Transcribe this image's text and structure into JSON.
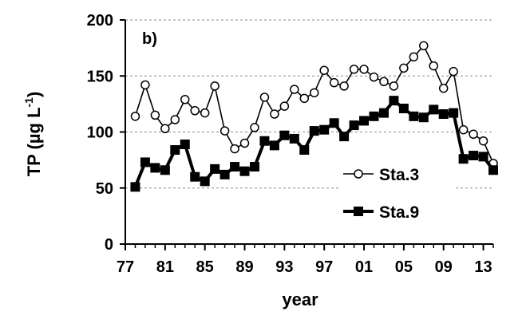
{
  "chart_data": {
    "type": "line",
    "panel_label": "b)",
    "xlabel": "year",
    "ylabel_main": "TP (µg L",
    "ylabel_sup": "-1",
    "ylabel_close": ")",
    "ylim": [
      0,
      200
    ],
    "yticks": [
      "0",
      "50",
      "100",
      "150",
      "200"
    ],
    "xlim": [
      1977,
      2014
    ],
    "xticks": [
      {
        "year": 1977,
        "label": "77"
      },
      {
        "year": 1981,
        "label": "81"
      },
      {
        "year": 1985,
        "label": "85"
      },
      {
        "year": 1989,
        "label": "89"
      },
      {
        "year": 1993,
        "label": "93"
      },
      {
        "year": 1997,
        "label": "97"
      },
      {
        "year": 2001,
        "label": "01"
      },
      {
        "year": 2005,
        "label": "05"
      },
      {
        "year": 2009,
        "label": "09"
      },
      {
        "year": 2013,
        "label": "13"
      }
    ],
    "grid": "horizontal-dashed",
    "legend_position": "bottom-right",
    "series": [
      {
        "name": "Sta.3",
        "marker": "open-circle",
        "color": "#000000",
        "x": [
          1978,
          1979,
          1980,
          1981,
          1982,
          1983,
          1984,
          1985,
          1986,
          1987,
          1988,
          1989,
          1990,
          1991,
          1992,
          1993,
          1994,
          1995,
          1996,
          1997,
          1998,
          1999,
          2000,
          2001,
          2002,
          2003,
          2004,
          2005,
          2006,
          2007,
          2008,
          2009,
          2010,
          2011,
          2012,
          2013,
          2014
        ],
        "y": [
          114,
          142,
          115,
          103,
          111,
          129,
          119,
          117,
          141,
          101,
          85,
          90,
          104,
          131,
          116,
          123,
          138,
          130,
          135,
          155,
          144,
          141,
          156,
          156,
          149,
          145,
          141,
          157,
          167,
          177,
          159,
          139,
          154,
          102,
          98,
          92,
          72
        ]
      },
      {
        "name": "Sta.9",
        "marker": "filled-square",
        "color": "#000000",
        "x": [
          1978,
          1979,
          1980,
          1981,
          1982,
          1983,
          1984,
          1985,
          1986,
          1987,
          1988,
          1989,
          1990,
          1991,
          1992,
          1993,
          1994,
          1995,
          1996,
          1997,
          1998,
          1999,
          2000,
          2001,
          2002,
          2003,
          2004,
          2005,
          2006,
          2007,
          2008,
          2009,
          2010,
          2011,
          2012,
          2013,
          2014
        ],
        "y": [
          51,
          73,
          68,
          66,
          84,
          89,
          60,
          56,
          67,
          62,
          69,
          65,
          69,
          92,
          88,
          97,
          94,
          84,
          101,
          102,
          108,
          96,
          106,
          110,
          114,
          117,
          128,
          121,
          114,
          113,
          120,
          116,
          117,
          76,
          79,
          78,
          66
        ]
      }
    ]
  }
}
